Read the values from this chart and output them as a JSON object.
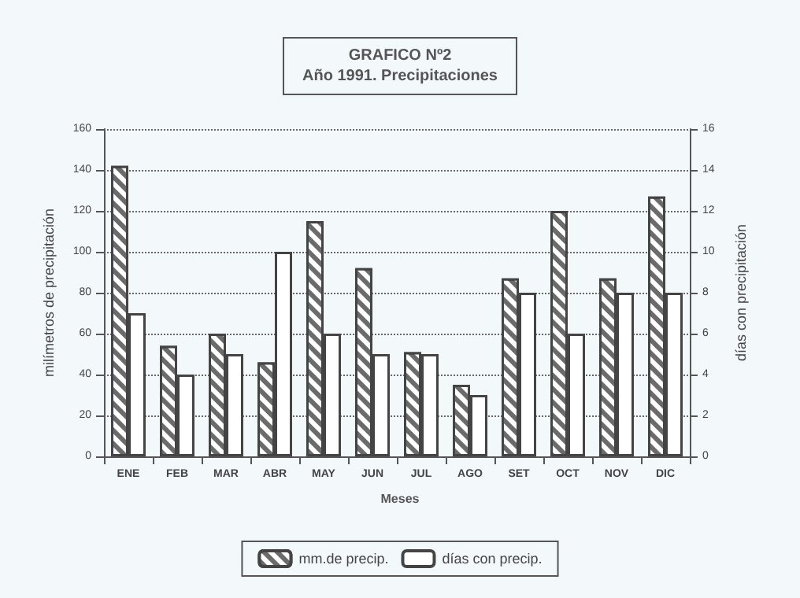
{
  "chart_data": {
    "type": "bar",
    "title": "GRAFICO Nº2\nAño 1991. Precipitaciones",
    "xlabel": "Meses",
    "ylabel": "milímetros de precipitación",
    "y2label": "días con precipitación",
    "categories": [
      "ENE",
      "FEB",
      "MAR",
      "ABR",
      "MAY",
      "JUN",
      "JUL",
      "AGO",
      "SET",
      "OCT",
      "NOV",
      "DIC"
    ],
    "series": [
      {
        "name": "mm.de precip.",
        "color": "#6b6b6b",
        "values": [
          142,
          54,
          60,
          46,
          115,
          92,
          51,
          35,
          87,
          120,
          87,
          127
        ]
      },
      {
        "name": "días con precip.",
        "color": "#ffffff",
        "axis": "y2",
        "values": [
          7,
          4,
          5,
          10,
          6,
          5,
          5,
          3,
          8,
          6,
          8,
          8
        ]
      }
    ],
    "ylim": [
      0,
      160
    ],
    "yticks": [
      0,
      20,
      40,
      60,
      80,
      100,
      120,
      140,
      160
    ],
    "y2lim": [
      0,
      16
    ],
    "y2ticks": [
      0,
      2,
      4,
      6,
      8,
      10,
      12,
      14,
      16
    ],
    "grid": "y",
    "legend": "bottom"
  }
}
